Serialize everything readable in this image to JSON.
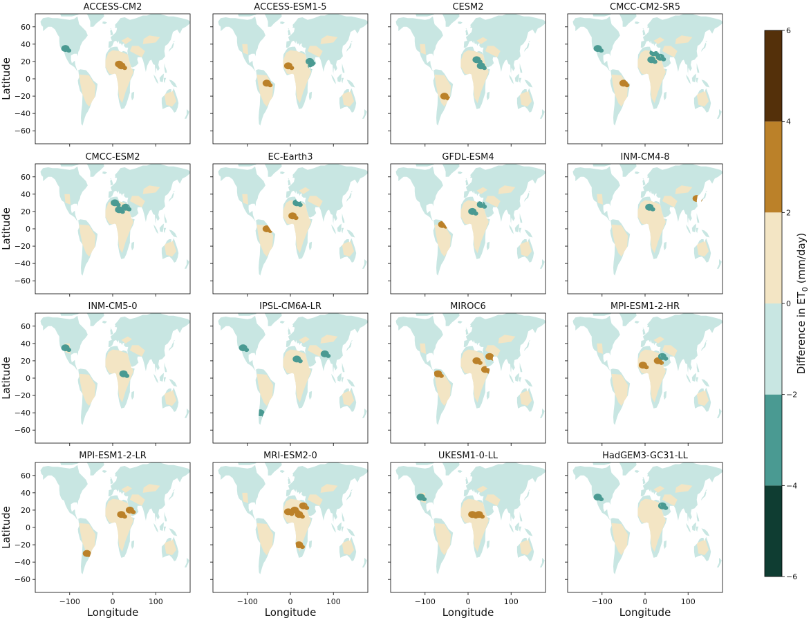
{
  "chart_data": {
    "type": "heatmap",
    "layout": "4x4 small multiples of global maps",
    "panels": [
      {
        "title": "ACCESS-CM2",
        "hotspots": [
          {
            "lon": 20,
            "lat": 15,
            "class": "2 to 4"
          },
          {
            "lon": 15,
            "lat": 17,
            "class": "2 to 4"
          },
          {
            "lon": -110,
            "lat": 35,
            "class": "-4 to -2"
          }
        ]
      },
      {
        "title": "ACCESS-ESM1-5",
        "hotspots": [
          {
            "lon": -55,
            "lat": -5,
            "class": "2 to 4"
          },
          {
            "lon": -5,
            "lat": 15,
            "class": "2 to 4"
          },
          {
            "lon": 45,
            "lat": 20,
            "class": "-4 to -2"
          },
          {
            "lon": 50,
            "lat": 15,
            "class": "-4 to -2"
          }
        ]
      },
      {
        "title": "CESM2",
        "hotspots": [
          {
            "lon": 20,
            "lat": 22,
            "class": "-4 to -2"
          },
          {
            "lon": -55,
            "lat": -20,
            "class": "2 to 4"
          },
          {
            "lon": 30,
            "lat": 15,
            "class": "-4 to -2"
          }
        ]
      },
      {
        "title": "CMCC-CM2-SR5",
        "hotspots": [
          {
            "lon": 15,
            "lat": 22,
            "class": "-4 to -2"
          },
          {
            "lon": 35,
            "lat": 25,
            "class": "-4 to -2"
          },
          {
            "lon": 20,
            "lat": 30,
            "class": "-4 to -2"
          },
          {
            "lon": -50,
            "lat": -5,
            "class": "2 to 4"
          },
          {
            "lon": -110,
            "lat": 35,
            "class": "-4 to -2"
          }
        ]
      },
      {
        "title": "CMCC-ESM2",
        "hotspots": [
          {
            "lon": 15,
            "lat": 22,
            "class": "-4 to -2"
          },
          {
            "lon": 30,
            "lat": 25,
            "class": "-4 to -2"
          },
          {
            "lon": 5,
            "lat": 30,
            "class": "-4 to -2"
          }
        ]
      },
      {
        "title": "EC-Earth3",
        "hotspots": [
          {
            "lon": -55,
            "lat": 0,
            "class": "2 to 4"
          },
          {
            "lon": 5,
            "lat": 15,
            "class": "2 to 4"
          },
          {
            "lon": 15,
            "lat": 30,
            "class": "-4 to -2"
          }
        ]
      },
      {
        "title": "GFDL-ESM4",
        "hotspots": [
          {
            "lon": 30,
            "lat": 28,
            "class": "-4 to -2"
          },
          {
            "lon": 10,
            "lat": 20,
            "class": "-4 to -2"
          },
          {
            "lon": -60,
            "lat": 5,
            "class": "2 to 4"
          }
        ]
      },
      {
        "title": "INM-CM4-8",
        "hotspots": [
          {
            "lon": 10,
            "lat": 25,
            "class": "-4 to -2"
          },
          {
            "lon": 120,
            "lat": 35,
            "class": "2 to 4"
          }
        ]
      },
      {
        "title": "INM-CM5-0",
        "hotspots": [
          {
            "lon": -110,
            "lat": 35,
            "class": "-4 to -2"
          },
          {
            "lon": 25,
            "lat": 5,
            "class": "-4 to -2"
          }
        ]
      },
      {
        "title": "IPSL-CM6A-LR",
        "hotspots": [
          {
            "lon": 15,
            "lat": 22,
            "class": "-4 to -2"
          },
          {
            "lon": 80,
            "lat": 28,
            "class": "-4 to -2"
          },
          {
            "lon": -110,
            "lat": 35,
            "class": "-4 to -2"
          },
          {
            "lon": -70,
            "lat": -40,
            "class": "-4 to -2"
          }
        ]
      },
      {
        "title": "MIROC6",
        "hotspots": [
          {
            "lon": 50,
            "lat": 25,
            "class": "2 to 4"
          },
          {
            "lon": 20,
            "lat": 20,
            "class": "2 to 4"
          },
          {
            "lon": -70,
            "lat": 5,
            "class": "2 to 4"
          },
          {
            "lon": 40,
            "lat": 10,
            "class": "2 to 4"
          }
        ]
      },
      {
        "title": "MPI-ESM1-2-HR",
        "hotspots": [
          {
            "lon": 30,
            "lat": 20,
            "class": "2 to 4"
          },
          {
            "lon": 40,
            "lat": 25,
            "class": "-4 to -2"
          },
          {
            "lon": -5,
            "lat": 15,
            "class": "2 to 4"
          }
        ]
      },
      {
        "title": "MPI-ESM1-2-LR",
        "hotspots": [
          {
            "lon": 20,
            "lat": 15,
            "class": "2 to 4"
          },
          {
            "lon": 40,
            "lat": 20,
            "class": "2 to 4"
          },
          {
            "lon": -60,
            "lat": -30,
            "class": "2 to 4"
          }
        ]
      },
      {
        "title": "MRI-ESM2-0",
        "hotspots": [
          {
            "lon": 10,
            "lat": 20,
            "class": "2 to 4"
          },
          {
            "lon": 20,
            "lat": 15,
            "class": "2 to 4"
          },
          {
            "lon": 30,
            "lat": 25,
            "class": "2 to 4"
          },
          {
            "lon": -5,
            "lat": 18,
            "class": "2 to 4"
          },
          {
            "lon": 20,
            "lat": -20,
            "class": "2 to 4"
          }
        ]
      },
      {
        "title": "UKESM1-0-LL",
        "hotspots": [
          {
            "lon": 10,
            "lat": 15,
            "class": "2 to 4"
          },
          {
            "lon": 25,
            "lat": 15,
            "class": "2 to 4"
          },
          {
            "lon": -110,
            "lat": 35,
            "class": "-4 to -2"
          }
        ]
      },
      {
        "title": "HadGEM3-GC31-LL",
        "hotspots": [
          {
            "lon": 40,
            "lat": 25,
            "class": "-4 to -2"
          },
          {
            "lon": -110,
            "lat": 35,
            "class": "-4 to -2"
          }
        ]
      }
    ],
    "xlabel": "Longitude",
    "ylabel": "Latitude",
    "xlim": [
      -180,
      180
    ],
    "ylim": [
      -75,
      75
    ],
    "xticks": [
      -100,
      0,
      100
    ],
    "xtick_labels": [
      "−100",
      "0",
      "100"
    ],
    "yticks": [
      60,
      40,
      20,
      0,
      -20,
      -40,
      -60
    ],
    "ytick_labels": [
      "60",
      "40",
      "20",
      "0",
      "−20",
      "−40",
      "−60"
    ],
    "colorbar": {
      "label": "Difference in ET",
      "label_subscript": "0",
      "label_units": " (mm/day)",
      "range": [
        -6,
        6
      ],
      "bounds": [
        -6,
        -4,
        -2,
        0,
        2,
        4,
        6
      ],
      "tick_labels": [
        "−6",
        "−4",
        "−2",
        "0",
        "2",
        "4",
        "6"
      ],
      "colors": [
        "#0f3d32",
        "#4a9a92",
        "#c8e6e2",
        "#f3e5c4",
        "#bb8129",
        "#54300a"
      ]
    },
    "grid": false
  }
}
